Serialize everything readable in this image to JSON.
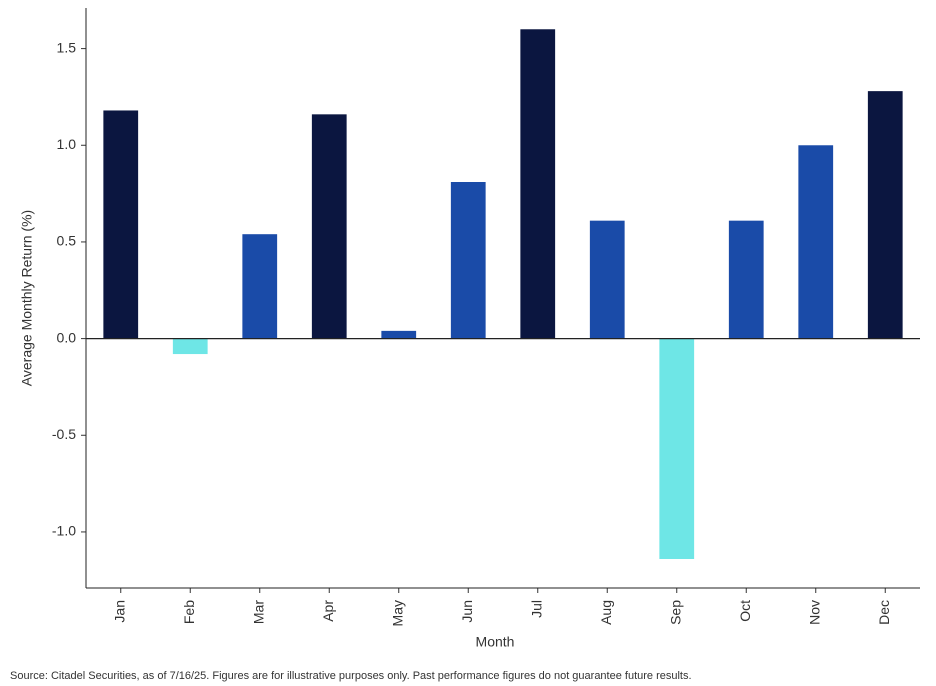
{
  "chart_data": {
    "type": "bar",
    "x_label": "Month",
    "y_label": "Average Monthly Return (%)",
    "source": "Source: Citadel Securities, as of 7/16/25. Figures are for illustrative purposes only. Past performance figures do not guarantee future results.",
    "categories": [
      "Jan",
      "Feb",
      "Mar",
      "Apr",
      "May",
      "Jun",
      "Jul",
      "Aug",
      "Sep",
      "Oct",
      "Nov",
      "Dec"
    ],
    "values": [
      1.18,
      -0.08,
      0.54,
      1.16,
      0.04,
      0.81,
      1.6,
      0.61,
      -1.14,
      0.61,
      1.0,
      1.28
    ],
    "colors": [
      "#0b1640",
      "#6ee6e6",
      "#1a4ba8",
      "#0b1640",
      "#1a4ba8",
      "#1a4ba8",
      "#0b1640",
      "#1a4ba8",
      "#6ee6e6",
      "#1a4ba8",
      "#1a4ba8",
      "#0b1640"
    ],
    "ylim": [
      -1.29,
      1.71
    ],
    "yticks": [
      {
        "value": -1.0,
        "label": "-1.0"
      },
      {
        "value": -0.5,
        "label": "-0.5"
      },
      {
        "value": 0,
        "label": "0.0"
      },
      {
        "value": 0.5,
        "label": "0.5"
      },
      {
        "value": 1.0,
        "label": "1.0"
      },
      {
        "value": 1.5,
        "label": "1.5"
      }
    ]
  }
}
